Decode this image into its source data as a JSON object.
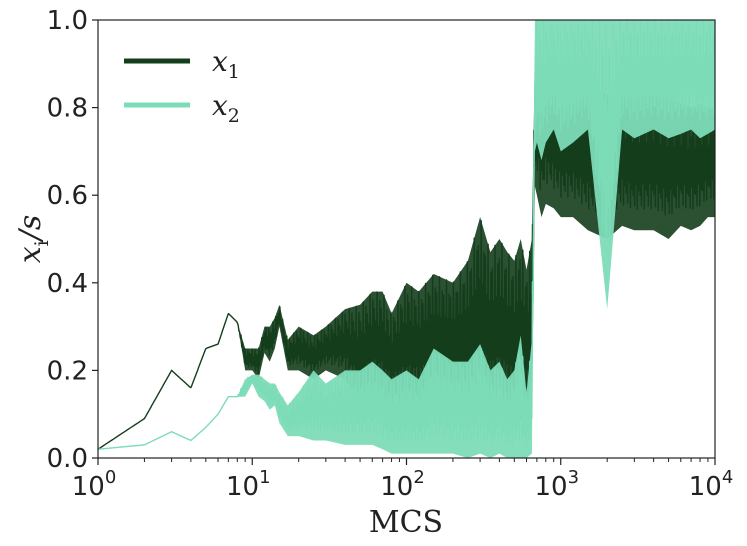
{
  "chart_data": {
    "type": "line",
    "title": "",
    "xlabel": "MCS",
    "ylabel": "x_i / s",
    "ylabel_parts": {
      "var": "x",
      "sub": "i",
      "rest": "/s"
    },
    "xscale": "log",
    "xlim": [
      1,
      10000
    ],
    "ylim": [
      0.0,
      1.0
    ],
    "x_ticks": [
      {
        "value": 1,
        "base": "10",
        "exp": "0"
      },
      {
        "value": 10,
        "base": "10",
        "exp": "1"
      },
      {
        "value": 100,
        "base": "10",
        "exp": "2"
      },
      {
        "value": 1000,
        "base": "10",
        "exp": "3"
      },
      {
        "value": 10000,
        "base": "10",
        "exp": "4"
      }
    ],
    "y_ticks": [
      {
        "value": 0.0,
        "label": "0.0"
      },
      {
        "value": 0.2,
        "label": "0.2"
      },
      {
        "value": 0.4,
        "label": "0.4"
      },
      {
        "value": 0.6,
        "label": "0.6"
      },
      {
        "value": 0.8,
        "label": "0.8"
      },
      {
        "value": 1.0,
        "label": "1.0"
      }
    ],
    "legend": {
      "position": "top-left"
    },
    "series": [
      {
        "name": "x1",
        "label_var": "x",
        "label_sub": "1",
        "color": "#143d1c",
        "x": [
          1,
          2,
          3,
          4,
          5,
          6,
          7,
          8,
          9,
          10,
          11,
          12,
          13,
          14,
          15,
          17,
          20,
          25,
          30,
          40,
          50,
          60,
          70,
          80,
          100,
          120,
          150,
          200,
          250,
          300,
          350,
          400,
          450,
          500,
          550,
          600,
          650,
          680,
          700,
          750,
          800,
          900,
          1000,
          1200,
          1500,
          2000,
          2500,
          3000,
          4000,
          5000,
          6000,
          7000,
          8000,
          9000,
          10000
        ],
        "y": [
          0.02,
          0.09,
          0.2,
          0.16,
          0.25,
          0.26,
          0.33,
          0.31,
          0.21,
          0.22,
          0.2,
          0.27,
          0.26,
          0.3,
          0.35,
          0.22,
          0.27,
          0.22,
          0.25,
          0.3,
          0.22,
          0.28,
          0.3,
          0.2,
          0.28,
          0.25,
          0.31,
          0.28,
          0.22,
          0.3,
          0.24,
          0.28,
          0.25,
          0.22,
          0.3,
          0.21,
          0.3,
          0.78,
          0.8,
          0.72,
          0.78,
          0.75,
          0.74,
          0.72,
          0.76,
          0.71,
          0.74,
          0.7,
          0.73,
          0.7,
          0.72,
          0.69,
          0.72,
          0.7,
          0.71
        ],
        "y_max_envelope": [
          0.02,
          0.09,
          0.2,
          0.16,
          0.25,
          0.26,
          0.33,
          0.31,
          0.25,
          0.25,
          0.25,
          0.3,
          0.3,
          0.32,
          0.35,
          0.27,
          0.3,
          0.28,
          0.3,
          0.34,
          0.35,
          0.38,
          0.38,
          0.33,
          0.4,
          0.38,
          0.42,
          0.4,
          0.45,
          0.55,
          0.47,
          0.5,
          0.47,
          0.45,
          0.5,
          0.43,
          0.5,
          0.92,
          0.9,
          0.88,
          0.9,
          0.87,
          0.85,
          0.85,
          0.84,
          0.83,
          0.84,
          0.82,
          0.83,
          0.82,
          0.81,
          0.8,
          0.81,
          0.8,
          0.8
        ],
        "y_min_envelope": [
          0.02,
          0.09,
          0.2,
          0.16,
          0.25,
          0.26,
          0.33,
          0.31,
          0.2,
          0.2,
          0.18,
          0.24,
          0.22,
          0.25,
          0.3,
          0.2,
          0.2,
          0.18,
          0.2,
          0.18,
          0.12,
          0.15,
          0.14,
          0.12,
          0.12,
          0.12,
          0.13,
          0.13,
          0.1,
          0.11,
          0.1,
          0.1,
          0.09,
          0.08,
          0.09,
          0.08,
          0.1,
          0.62,
          0.6,
          0.55,
          0.58,
          0.57,
          0.55,
          0.55,
          0.52,
          0.5,
          0.53,
          0.52,
          0.52,
          0.5,
          0.53,
          0.52,
          0.53,
          0.55,
          0.55
        ]
      },
      {
        "name": "x2",
        "label_var": "x",
        "label_sub": "2",
        "color": "#7ddcb8",
        "x": [
          1,
          2,
          3,
          4,
          5,
          6,
          7,
          8,
          9,
          10,
          11,
          12,
          13,
          14,
          15,
          17,
          20,
          25,
          30,
          40,
          50,
          60,
          70,
          80,
          100,
          120,
          150,
          200,
          250,
          300,
          350,
          400,
          450,
          500,
          550,
          600,
          650,
          680,
          700,
          750,
          800,
          900,
          1000,
          1200,
          1500,
          2000,
          2500,
          3000,
          4000,
          5000,
          6000,
          7000,
          8000,
          9000,
          10000
        ],
        "y": [
          0.02,
          0.03,
          0.06,
          0.04,
          0.07,
          0.1,
          0.14,
          0.14,
          0.16,
          0.19,
          0.17,
          0.16,
          0.14,
          0.15,
          0.12,
          0.08,
          0.1,
          0.12,
          0.08,
          0.1,
          0.08,
          0.1,
          0.07,
          0.06,
          0.06,
          0.05,
          0.08,
          0.07,
          0.06,
          0.08,
          0.05,
          0.06,
          0.04,
          0.05,
          0.06,
          0.04,
          0.05,
          0.9,
          0.92,
          0.88,
          0.9,
          0.92,
          0.91,
          0.9,
          0.92,
          0.9,
          0.91,
          0.9,
          0.92,
          0.9,
          0.91,
          0.92,
          0.9,
          0.91,
          0.92
        ],
        "y_max_envelope": [
          0.02,
          0.03,
          0.06,
          0.04,
          0.07,
          0.1,
          0.14,
          0.14,
          0.18,
          0.19,
          0.19,
          0.18,
          0.17,
          0.17,
          0.15,
          0.12,
          0.15,
          0.2,
          0.17,
          0.2,
          0.2,
          0.22,
          0.2,
          0.18,
          0.2,
          0.18,
          0.25,
          0.22,
          0.22,
          0.26,
          0.2,
          0.22,
          0.18,
          0.2,
          0.28,
          0.15,
          0.27,
          1.0,
          1.0,
          1.0,
          1.0,
          1.0,
          1.0,
          1.0,
          1.0,
          1.0,
          1.0,
          1.0,
          1.0,
          1.0,
          1.0,
          1.0,
          1.0,
          1.0,
          1.0
        ],
        "y_min_envelope": [
          0.02,
          0.03,
          0.06,
          0.04,
          0.07,
          0.1,
          0.14,
          0.14,
          0.14,
          0.17,
          0.14,
          0.13,
          0.11,
          0.12,
          0.08,
          0.05,
          0.05,
          0.04,
          0.04,
          0.03,
          0.03,
          0.03,
          0.02,
          0.01,
          0.01,
          0.01,
          0.01,
          0.01,
          0.0,
          0.01,
          0.0,
          0.01,
          0.0,
          0.0,
          0.0,
          0.0,
          0.01,
          0.7,
          0.72,
          0.68,
          0.72,
          0.75,
          0.7,
          0.72,
          0.75,
          0.34,
          0.75,
          0.73,
          0.75,
          0.73,
          0.74,
          0.75,
          0.73,
          0.74,
          0.75
        ]
      }
    ]
  }
}
